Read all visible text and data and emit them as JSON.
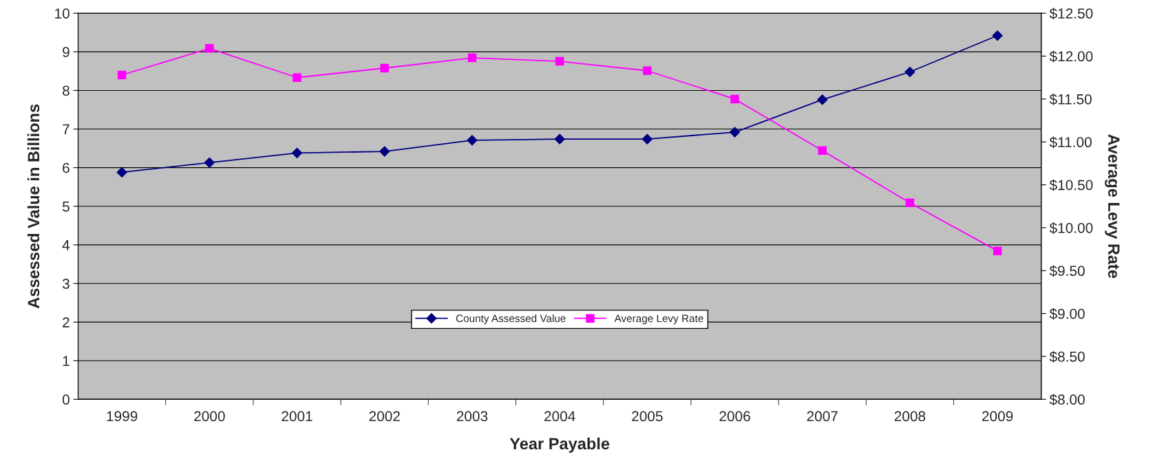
{
  "chart_data": {
    "type": "line",
    "xlabel": "Year Payable",
    "ylabel": "Assessed Value in Billions",
    "y2label": "Average Levy Rate",
    "categories": [
      "1999",
      "2000",
      "2001",
      "2002",
      "2003",
      "2004",
      "2005",
      "2006",
      "2007",
      "2008",
      "2009"
    ],
    "series": [
      {
        "name": "County Assessed Value",
        "color": "#000080",
        "marker": "diamond",
        "values": [
          5.88,
          6.13,
          6.38,
          6.42,
          6.71,
          6.74,
          6.74,
          6.92,
          7.76,
          8.48,
          9.42
        ]
      },
      {
        "name": "Average Levy Rate",
        "color": "#ff00ff",
        "marker": "square",
        "axis": "y2",
        "values": [
          11.78,
          12.09,
          11.75,
          11.86,
          11.98,
          11.94,
          11.83,
          11.5,
          10.9,
          10.29,
          9.73
        ]
      }
    ],
    "ylim": [
      0,
      10
    ],
    "yticks": [
      0,
      1,
      2,
      3,
      4,
      5,
      6,
      7,
      8,
      9,
      10
    ],
    "y2lim": [
      8,
      12.5
    ],
    "y2ticks": [
      {
        "value": 8,
        "label": "$8.00"
      },
      {
        "value": 8.5,
        "label": "$8.50"
      },
      {
        "value": 9,
        "label": "$9.00"
      },
      {
        "value": 9.5,
        "label": "$9.50"
      },
      {
        "value": 10,
        "label": "$10.00"
      },
      {
        "value": 10.5,
        "label": "$10.50"
      },
      {
        "value": 11,
        "label": "$11.00"
      },
      {
        "value": 11.5,
        "label": "$11.50"
      },
      {
        "value": 12,
        "label": "$12.00"
      },
      {
        "value": 12.5,
        "label": "$12.50"
      }
    ],
    "grid": "y",
    "legend": "bottom"
  }
}
